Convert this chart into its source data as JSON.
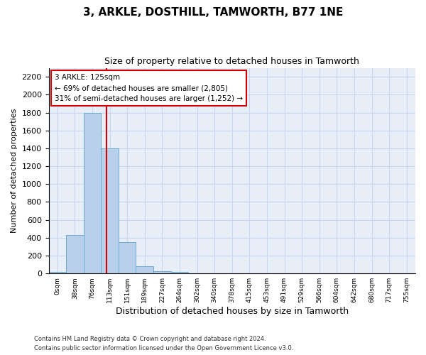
{
  "title": "3, ARKLE, DOSTHILL, TAMWORTH, B77 1NE",
  "subtitle": "Size of property relative to detached houses in Tamworth",
  "xlabel": "Distribution of detached houses by size in Tamworth",
  "ylabel": "Number of detached properties",
  "bar_labels": [
    "0sqm",
    "38sqm",
    "76sqm",
    "113sqm",
    "151sqm",
    "189sqm",
    "227sqm",
    "264sqm",
    "302sqm",
    "340sqm",
    "378sqm",
    "415sqm",
    "453sqm",
    "491sqm",
    "529sqm",
    "566sqm",
    "604sqm",
    "642sqm",
    "680sqm",
    "717sqm",
    "755sqm"
  ],
  "bar_values": [
    15,
    430,
    1800,
    1400,
    350,
    80,
    25,
    20,
    0,
    0,
    0,
    0,
    0,
    0,
    0,
    0,
    0,
    0,
    0,
    0,
    0
  ],
  "bar_color": "#b8d0ea",
  "bar_edge_color": "#6aaad4",
  "bar_edge_width": 0.7,
  "annotation_text": "3 ARKLE: 125sqm\n← 69% of detached houses are smaller (2,805)\n31% of semi-detached houses are larger (1,252) →",
  "annotation_box_color": "#ffffff",
  "annotation_box_edge_color": "#cc0000",
  "vline_color": "#cc0000",
  "ylim": [
    0,
    2300
  ],
  "yticks": [
    0,
    200,
    400,
    600,
    800,
    1000,
    1200,
    1400,
    1600,
    1800,
    2000,
    2200
  ],
  "grid_color": "#c8d8ec",
  "bg_color": "#e8eef8",
  "footer_line1": "Contains HM Land Registry data © Crown copyright and database right 2024.",
  "footer_line2": "Contains public sector information licensed under the Open Government Licence v3.0."
}
